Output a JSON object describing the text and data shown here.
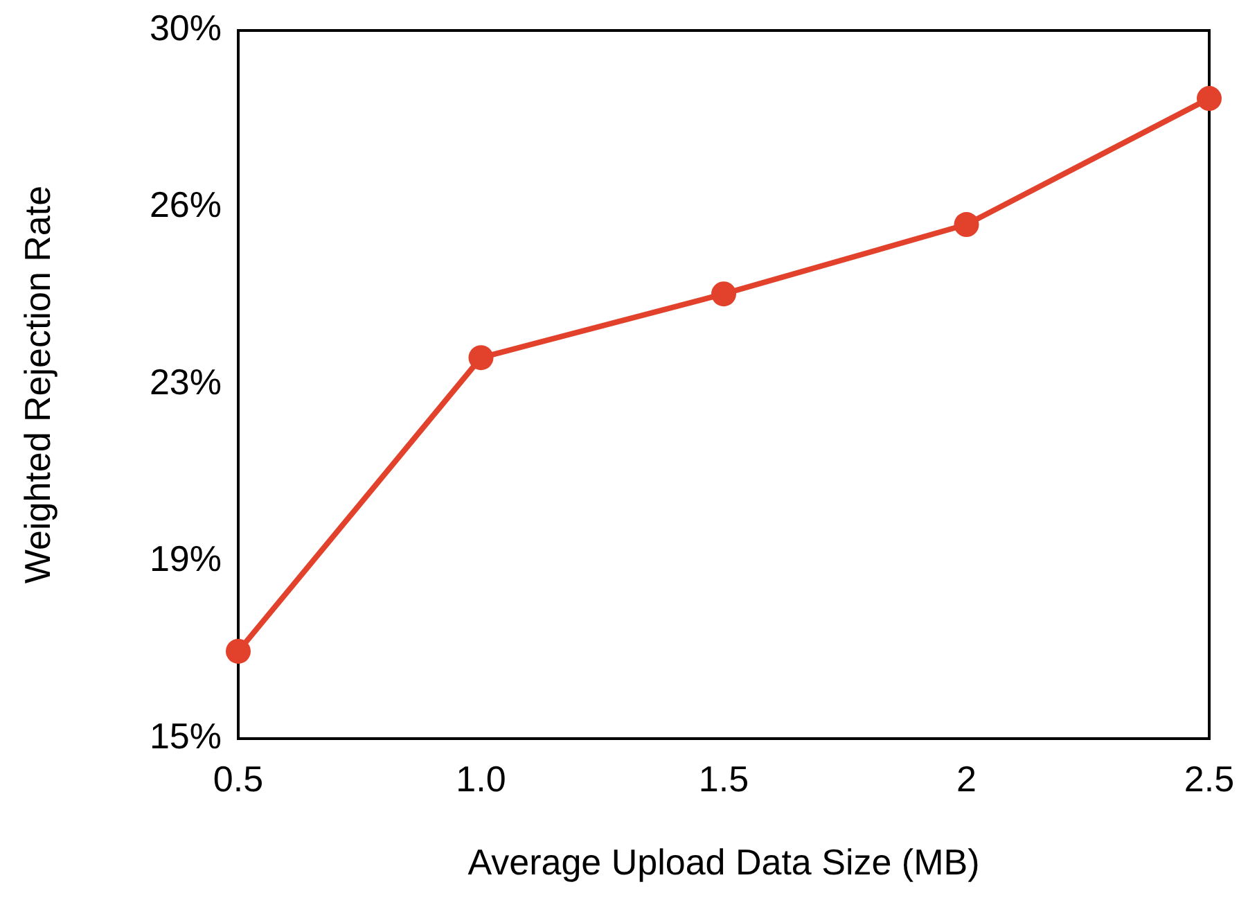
{
  "chart_data": {
    "type": "line",
    "xlabel": "Average Upload Data Size (MB)",
    "ylabel": "Weighted Rejection Rate",
    "categories": [
      "0.5",
      "1.0",
      "1.5",
      "2",
      "2.5"
    ],
    "series": [
      {
        "color": "#e2412b",
        "values": [
          16.85,
          23.07,
          24.42,
          25.89,
          28.56
        ]
      }
    ],
    "ylim": [
      15,
      30
    ],
    "yticks": [
      {
        "value": 15,
        "label": "15%"
      },
      {
        "value": 18.75,
        "label": "19%"
      },
      {
        "value": 22.5,
        "label": "23%"
      },
      {
        "value": 26.25,
        "label": "26%"
      },
      {
        "value": 30,
        "label": "30%"
      }
    ],
    "grid": false,
    "marker": "circle",
    "line_style": "solid"
  }
}
